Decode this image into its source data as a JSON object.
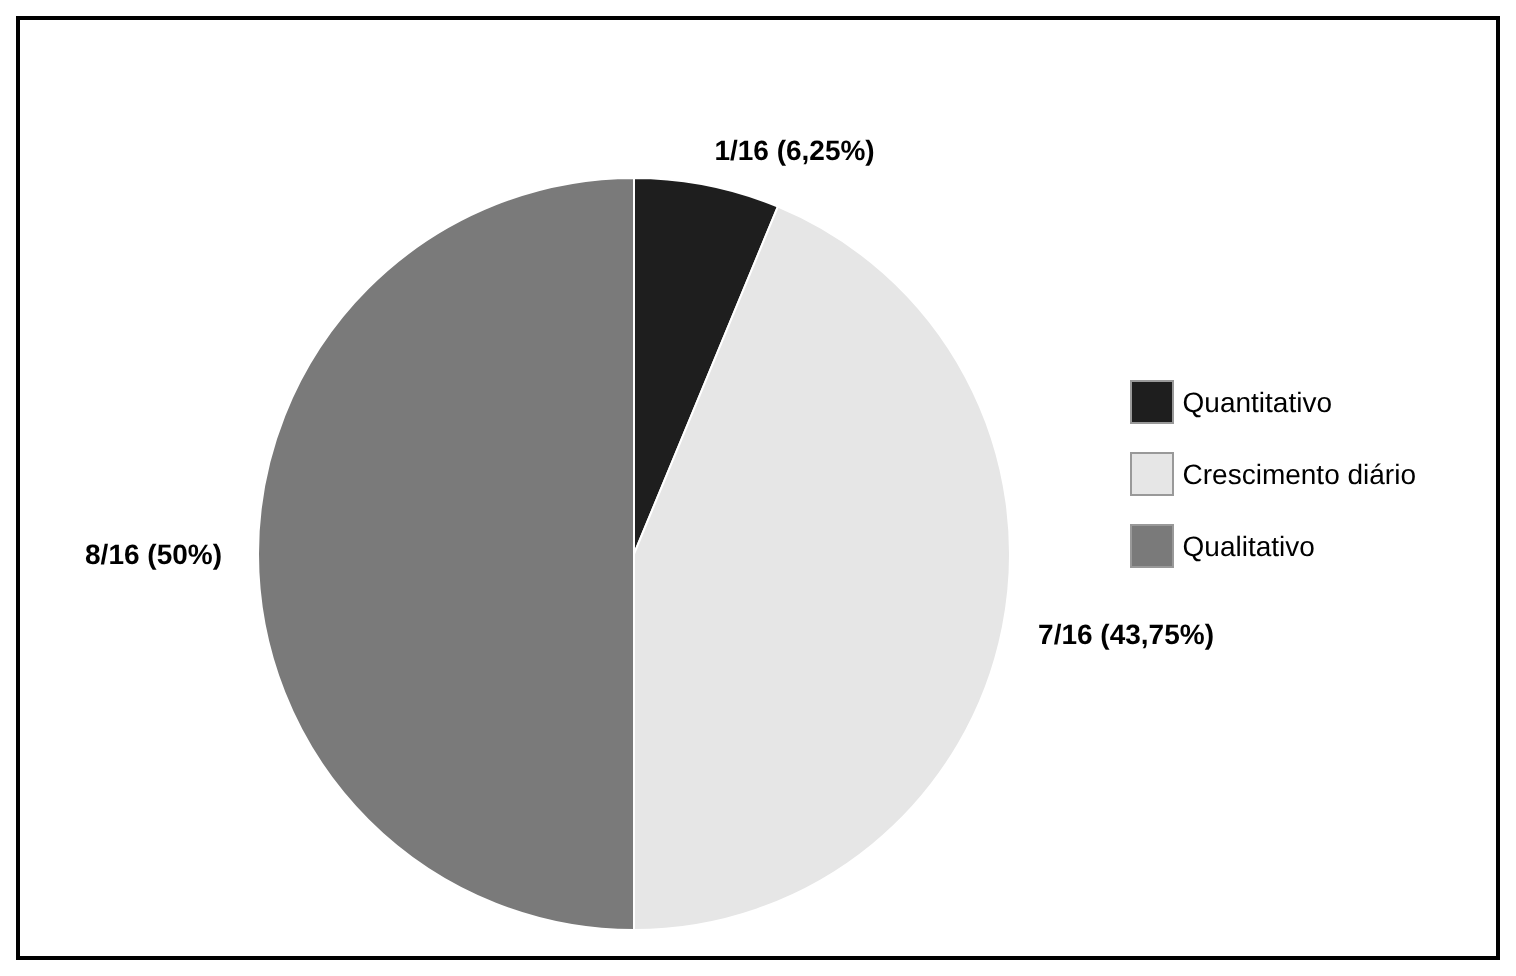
{
  "chart_data": {
    "type": "pie",
    "categories": [
      "Quantitativo",
      "Crescimento diário",
      "Qualitativo"
    ],
    "values": [
      6.25,
      43.75,
      50
    ],
    "colors": [
      "#1e1e1e",
      "#e6e6e6",
      "#7a7a7a"
    ],
    "value_labels": [
      "1/16 (6,25%)",
      "7/16 (43,75%)",
      "8/16 (50%)"
    ],
    "legend": "right"
  }
}
